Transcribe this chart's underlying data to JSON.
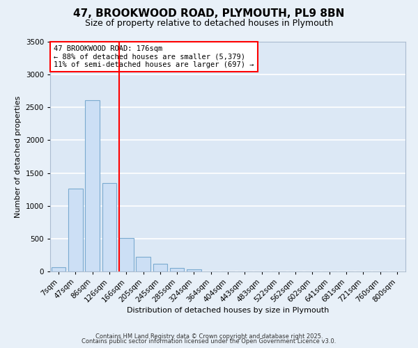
{
  "title": "47, BROOKWOOD ROAD, PLYMOUTH, PL9 8BN",
  "subtitle": "Size of property relative to detached houses in Plymouth",
  "xlabel": "Distribution of detached houses by size in Plymouth",
  "ylabel": "Number of detached properties",
  "bar_color": "#ccdff5",
  "bar_edge_color": "#7aaad0",
  "background_color": "#dce8f5",
  "grid_color": "#ffffff",
  "fig_facecolor": "#e8f0f8",
  "categories": [
    "7sqm",
    "47sqm",
    "86sqm",
    "126sqm",
    "166sqm",
    "205sqm",
    "245sqm",
    "285sqm",
    "324sqm",
    "364sqm",
    "404sqm",
    "443sqm",
    "483sqm",
    "522sqm",
    "562sqm",
    "602sqm",
    "641sqm",
    "681sqm",
    "721sqm",
    "760sqm",
    "800sqm"
  ],
  "values": [
    60,
    1260,
    2610,
    1350,
    510,
    220,
    115,
    50,
    30,
    0,
    0,
    0,
    0,
    0,
    0,
    0,
    0,
    0,
    0,
    0,
    0
  ],
  "ylim": [
    0,
    3500
  ],
  "yticks": [
    0,
    500,
    1000,
    1500,
    2000,
    2500,
    3000,
    3500
  ],
  "property_line_label": "47 BROOKWOOD ROAD: 176sqm",
  "annotation_line1": "← 88% of detached houses are smaller (5,379)",
  "annotation_line2": "11% of semi-detached houses are larger (697) →",
  "footnote1": "Contains HM Land Registry data © Crown copyright and database right 2025.",
  "footnote2": "Contains public sector information licensed under the Open Government Licence v3.0.",
  "title_fontsize": 11,
  "subtitle_fontsize": 9,
  "axis_label_fontsize": 8,
  "tick_fontsize": 7.5,
  "annotation_fontsize": 7.5,
  "footnote_fontsize": 6
}
